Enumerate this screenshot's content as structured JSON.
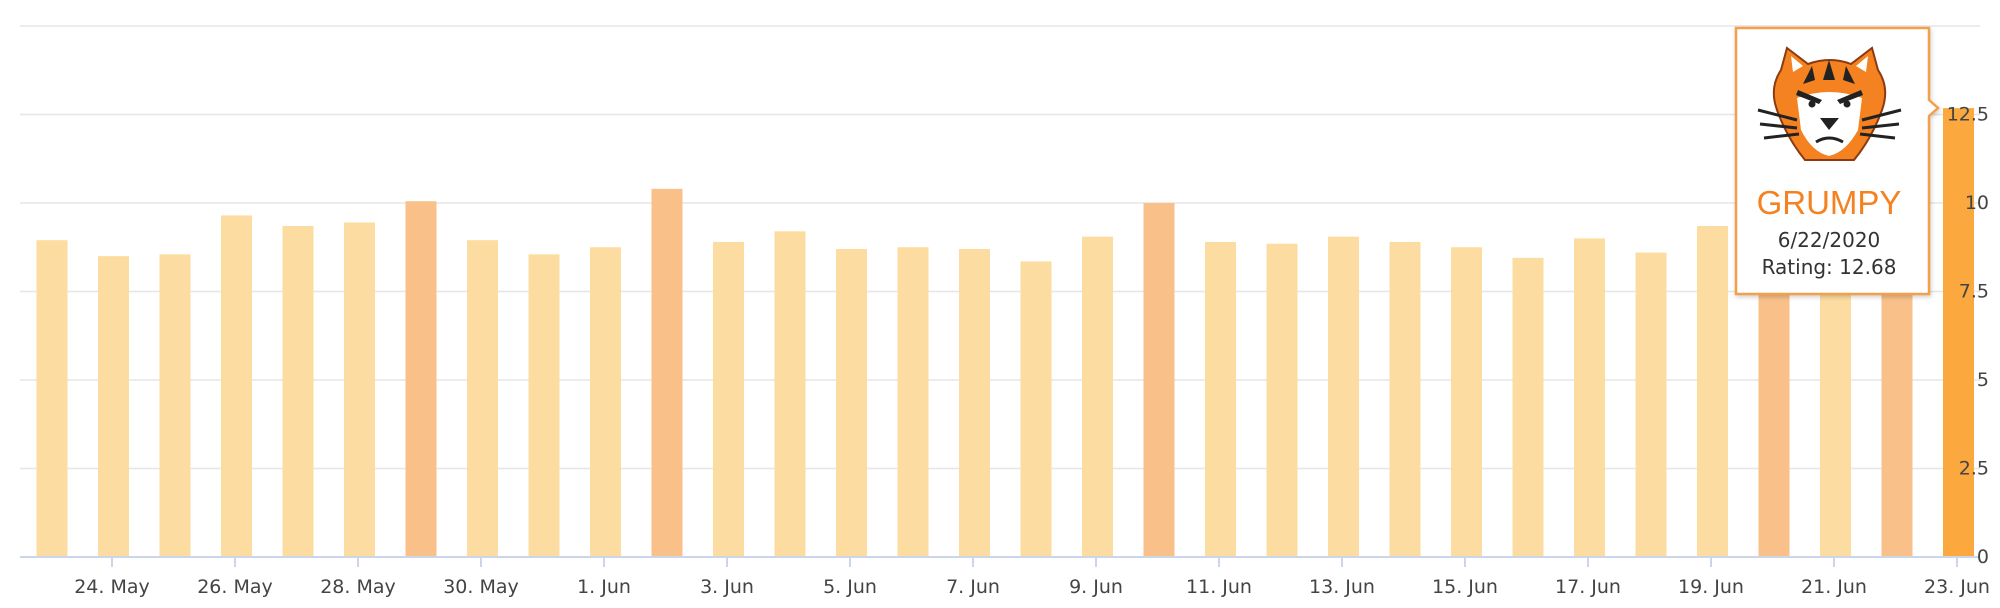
{
  "chart_data": {
    "type": "bar",
    "xaxis": {
      "type": "datetime",
      "min": "2020-05-22",
      "max": "2020-06-22",
      "tick_labels": [
        "24. May",
        "26. May",
        "28. May",
        "30. May",
        "1. Jun",
        "3. Jun",
        "5. Jun",
        "7. Jun",
        "9. Jun",
        "11. Jun",
        "13. Jun",
        "15. Jun",
        "17. Jun",
        "19. Jun",
        "21. Jun",
        "23. Jun"
      ]
    },
    "yaxis": {
      "position": "right",
      "range": [
        0,
        15
      ],
      "tick_labels": [
        "0",
        "2.5",
        "5",
        "7.5",
        "10",
        "12.5"
      ]
    },
    "grid": true,
    "legend": false,
    "colors": {
      "light": "#FDDCA1",
      "medium": "#F9C08A",
      "hover": "#FBA93F",
      "grid": "#E6E6E6",
      "axis_line": "#CCD6EB",
      "tooltip_border": "#F4A04B",
      "label": "#444444"
    },
    "bars": [
      {
        "date": "2020-05-22",
        "value": 8.95,
        "shade": "light"
      },
      {
        "date": "2020-05-23",
        "value": 8.5,
        "shade": "light"
      },
      {
        "date": "2020-05-24",
        "value": 8.55,
        "shade": "light"
      },
      {
        "date": "2020-05-25",
        "value": 9.65,
        "shade": "light"
      },
      {
        "date": "2020-05-26",
        "value": 9.35,
        "shade": "light"
      },
      {
        "date": "2020-05-27",
        "value": 9.45,
        "shade": "light"
      },
      {
        "date": "2020-05-28",
        "value": 10.05,
        "shade": "medium"
      },
      {
        "date": "2020-05-29",
        "value": 8.95,
        "shade": "light"
      },
      {
        "date": "2020-05-30",
        "value": 8.55,
        "shade": "light"
      },
      {
        "date": "2020-05-31",
        "value": 8.75,
        "shade": "light"
      },
      {
        "date": "2020-06-01",
        "value": 10.4,
        "shade": "medium"
      },
      {
        "date": "2020-06-02",
        "value": 8.9,
        "shade": "light"
      },
      {
        "date": "2020-06-03",
        "value": 9.2,
        "shade": "light"
      },
      {
        "date": "2020-06-04",
        "value": 8.7,
        "shade": "light"
      },
      {
        "date": "2020-06-05",
        "value": 8.75,
        "shade": "light"
      },
      {
        "date": "2020-06-06",
        "value": 8.7,
        "shade": "light"
      },
      {
        "date": "2020-06-07",
        "value": 8.35,
        "shade": "light"
      },
      {
        "date": "2020-06-08",
        "value": 9.05,
        "shade": "light"
      },
      {
        "date": "2020-06-09",
        "value": 10.0,
        "shade": "medium"
      },
      {
        "date": "2020-06-10",
        "value": 8.9,
        "shade": "light"
      },
      {
        "date": "2020-06-11",
        "value": 8.85,
        "shade": "light"
      },
      {
        "date": "2020-06-12",
        "value": 9.05,
        "shade": "light"
      },
      {
        "date": "2020-06-13",
        "value": 8.9,
        "shade": "light"
      },
      {
        "date": "2020-06-14",
        "value": 8.75,
        "shade": "light"
      },
      {
        "date": "2020-06-15",
        "value": 8.45,
        "shade": "light"
      },
      {
        "date": "2020-06-16",
        "value": 9.0,
        "shade": "light"
      },
      {
        "date": "2020-06-17",
        "value": 8.6,
        "shade": "light"
      },
      {
        "date": "2020-06-18",
        "value": 9.35,
        "shade": "light"
      },
      {
        "date": "2020-06-19",
        "value": 9.8,
        "shade": "medium"
      },
      {
        "date": "2020-06-20",
        "value": 8.9,
        "shade": "light"
      },
      {
        "date": "2020-06-21",
        "value": 9.9,
        "shade": "medium"
      },
      {
        "date": "2020-06-22",
        "value": 12.68,
        "shade": "hover"
      }
    ]
  },
  "tooltip": {
    "mood": "GRUMPY",
    "date": "6/22/2020",
    "rating": "Rating: 12.68",
    "icon": "grumpy-tiger-icon",
    "target_date": "2020-06-22"
  }
}
